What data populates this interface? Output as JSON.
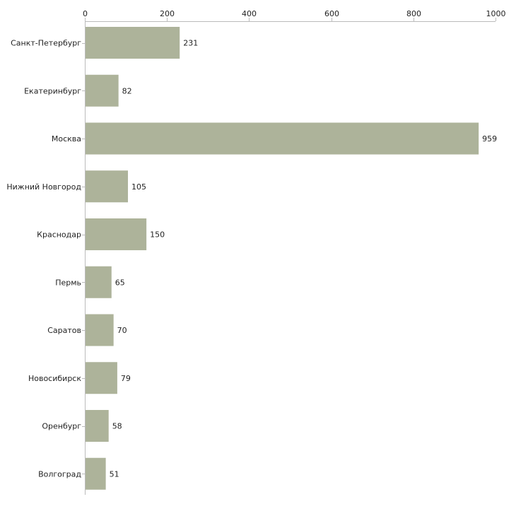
{
  "colors": {
    "bar": "#adb39a",
    "axis": "#bbbbbb",
    "text": "#222222",
    "background": "#ffffff"
  },
  "chart_data": {
    "type": "bar",
    "orientation": "horizontal",
    "title": "",
    "xlabel": "",
    "ylabel": "",
    "xlim": [
      0,
      1000
    ],
    "x_ticks": [
      0,
      200,
      400,
      600,
      800,
      1000
    ],
    "x_axis_position": "top",
    "grid": false,
    "categories": [
      "Санкт-Петербург",
      "Екатеринбург",
      "Москва",
      "Нижний Новгород",
      "Краснодар",
      "Пермь",
      "Саратов",
      "Новосибирск",
      "Оренбург",
      "Волгоград"
    ],
    "values": [
      231,
      82,
      959,
      105,
      150,
      65,
      70,
      79,
      58,
      51
    ]
  }
}
